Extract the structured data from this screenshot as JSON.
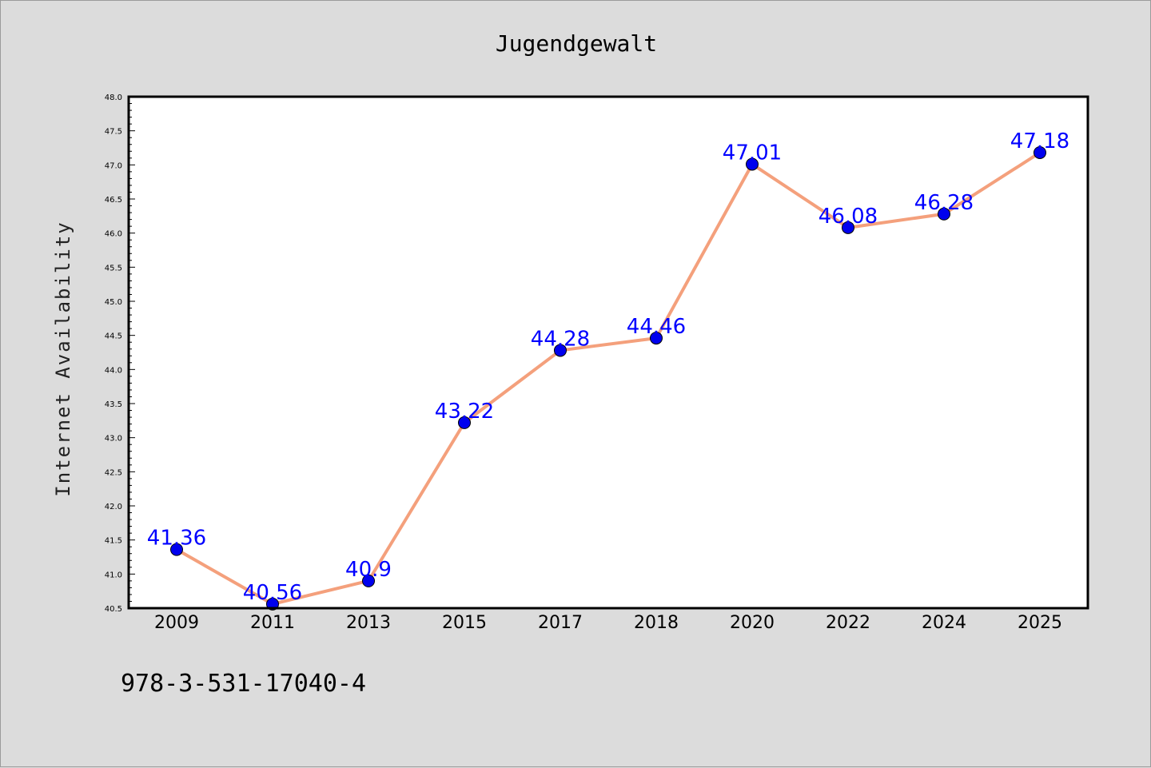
{
  "footer": {
    "code": "978-3-531-17040-4"
  },
  "chart_data": {
    "type": "line",
    "title": "Jugendgewalt",
    "xlabel": "",
    "ylabel": "Internet Availability",
    "categories": [
      "2009",
      "2011",
      "2013",
      "2015",
      "2017",
      "2018",
      "2020",
      "2022",
      "2024",
      "2025"
    ],
    "values": [
      41.36,
      40.56,
      40.9,
      43.22,
      44.28,
      44.46,
      47.01,
      46.08,
      46.28,
      47.18
    ],
    "data_labels": [
      "41.36",
      "40.56",
      "40.9",
      "43.22",
      "44.28",
      "44.46",
      "47.01",
      "46.08",
      "46.28",
      "47.18"
    ],
    "ylim": [
      40.5,
      48.0
    ],
    "yticks": [
      "40.5",
      "41.0",
      "41.5",
      "42.0",
      "42.5",
      "43.0",
      "43.5",
      "44.0",
      "44.5",
      "45.0",
      "45.5",
      "46.0",
      "46.5",
      "47.0",
      "47.5",
      "48.0"
    ],
    "grid": false,
    "legend": "none",
    "colors": {
      "line": "#f4a07c",
      "marker": "#0000ee",
      "label": "#0000ff",
      "background": "#dcdcdc",
      "plot_background": "#ffffff"
    }
  }
}
